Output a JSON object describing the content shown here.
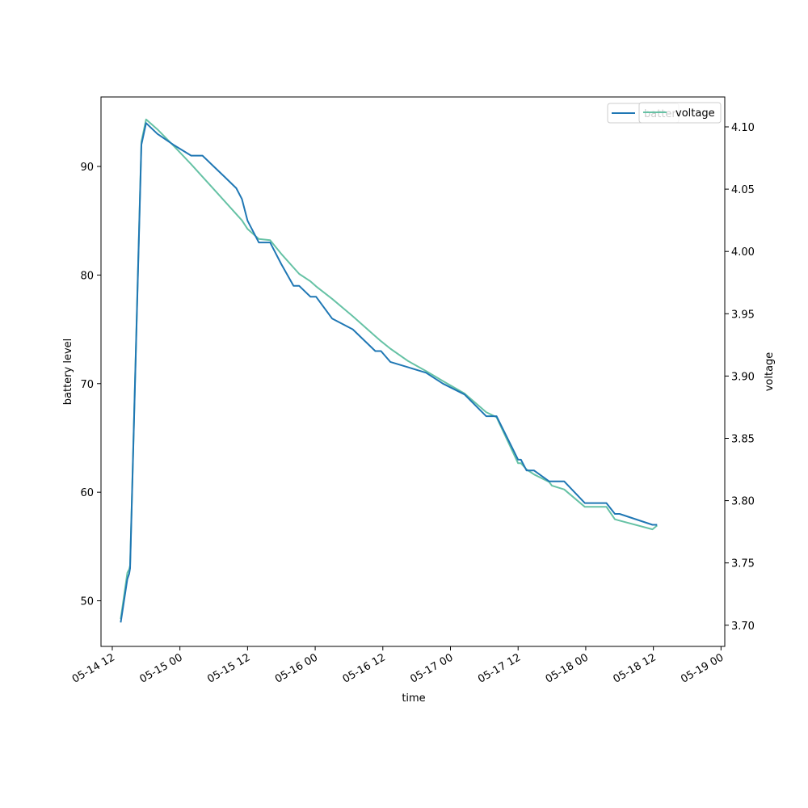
{
  "chart_data": {
    "type": "line",
    "xlabel": "time",
    "ylabel_left": "battery level",
    "ylabel_right": "voltage",
    "xlim": [
      "05-14 10:00",
      "05-19 00:40"
    ],
    "ylim_left": [
      45.8,
      96.4
    ],
    "ylim_right": [
      3.683,
      4.124
    ],
    "grid": false,
    "legend_placement": "top-right",
    "x_ticks": [
      {
        "value": "05-14 12:00",
        "label": "05-14 12"
      },
      {
        "value": "05-15 00:00",
        "label": "05-15 00"
      },
      {
        "value": "05-15 12:00",
        "label": "05-15 12"
      },
      {
        "value": "05-16 00:00",
        "label": "05-16 00"
      },
      {
        "value": "05-16 12:00",
        "label": "05-16 12"
      },
      {
        "value": "05-17 00:00",
        "label": "05-17 00"
      },
      {
        "value": "05-17 12:00",
        "label": "05-17 12"
      },
      {
        "value": "05-18 00:00",
        "label": "05-18 00"
      },
      {
        "value": "05-18 12:00",
        "label": "05-18 12"
      },
      {
        "value": "05-19 00:00",
        "label": "05-19 00"
      }
    ],
    "y_ticks_left": [
      {
        "value": 50,
        "label": "50"
      },
      {
        "value": 60,
        "label": "60"
      },
      {
        "value": 70,
        "label": "70"
      },
      {
        "value": 80,
        "label": "80"
      },
      {
        "value": 90,
        "label": "90"
      }
    ],
    "y_ticks_right": [
      {
        "value": 3.7,
        "label": "3.70"
      },
      {
        "value": 3.75,
        "label": "3.75"
      },
      {
        "value": 3.8,
        "label": "3.80"
      },
      {
        "value": 3.85,
        "label": "3.85"
      },
      {
        "value": 3.9,
        "label": "3.90"
      },
      {
        "value": 3.95,
        "label": "3.95"
      },
      {
        "value": 4.0,
        "label": "4.00"
      },
      {
        "value": 4.05,
        "label": "4.05"
      },
      {
        "value": 4.1,
        "label": "4.10"
      }
    ],
    "series": [
      {
        "name": "battery",
        "axis": "left",
        "color": "#1f77b4",
        "legend_visible_text": "batter",
        "points": [
          [
            "05-14 13:30",
            48
          ],
          [
            "05-14 14:40",
            52
          ],
          [
            "05-14 15:00",
            52.5
          ],
          [
            "05-14 15:10",
            53
          ],
          [
            "05-14 17:10",
            92
          ],
          [
            "05-14 18:00",
            94
          ],
          [
            "05-14 20:00",
            93
          ],
          [
            "05-14 22:50",
            92
          ],
          [
            "05-15 02:00",
            91
          ],
          [
            "05-15 04:00",
            91
          ],
          [
            "05-15 06:00",
            90
          ],
          [
            "05-15 08:00",
            89
          ],
          [
            "05-15 10:00",
            88
          ],
          [
            "05-15 11:00",
            87
          ],
          [
            "05-15 12:00",
            85
          ],
          [
            "05-15 14:00",
            83
          ],
          [
            "05-15 16:00",
            83
          ],
          [
            "05-15 18:00",
            81
          ],
          [
            "05-15 20:10",
            79
          ],
          [
            "05-15 21:10",
            79
          ],
          [
            "05-15 23:10",
            78
          ],
          [
            "05-16 00:10",
            78
          ],
          [
            "05-16 03:00",
            76
          ],
          [
            "05-16 06:40",
            75
          ],
          [
            "05-16 10:40",
            73
          ],
          [
            "05-16 11:40",
            73
          ],
          [
            "05-16 13:20",
            72
          ],
          [
            "05-16 16:30",
            71.5
          ],
          [
            "05-16 19:40",
            71
          ],
          [
            "05-16 22:40",
            70
          ],
          [
            "05-17 02:30",
            69
          ],
          [
            "05-17 06:20",
            67
          ],
          [
            "05-17 08:10",
            67
          ],
          [
            "05-17 12:00",
            63
          ],
          [
            "05-17 12:30",
            63
          ],
          [
            "05-17 13:30",
            62
          ],
          [
            "05-17 14:50",
            62
          ],
          [
            "05-17 17:30",
            61
          ],
          [
            "05-17 20:10",
            61
          ],
          [
            "05-17 23:50",
            59
          ],
          [
            "05-18 03:40",
            59
          ],
          [
            "05-18 05:10",
            58
          ],
          [
            "05-18 06:00",
            58
          ],
          [
            "05-18 11:50",
            57
          ],
          [
            "05-18 12:40",
            57
          ]
        ]
      },
      {
        "name": "voltage",
        "axis": "right",
        "color": "#66c2a5",
        "points": [
          [
            "05-14 13:30",
            3.705
          ],
          [
            "05-14 14:40",
            3.742
          ],
          [
            "05-14 15:00",
            3.745
          ],
          [
            "05-14 15:10",
            3.748
          ],
          [
            "05-14 17:10",
            4.088
          ],
          [
            "05-14 18:00",
            4.106
          ],
          [
            "05-14 20:00",
            4.098
          ],
          [
            "05-14 22:50",
            4.085
          ],
          [
            "05-15 02:00",
            4.07
          ],
          [
            "05-15 06:00",
            4.05
          ],
          [
            "05-15 10:00",
            4.03
          ],
          [
            "05-15 11:00",
            4.025
          ],
          [
            "05-15 12:00",
            4.018
          ],
          [
            "05-15 14:00",
            4.01
          ],
          [
            "05-15 16:00",
            4.009
          ],
          [
            "05-15 18:00",
            3.998
          ],
          [
            "05-15 21:10",
            3.982
          ],
          [
            "05-15 23:10",
            3.976
          ],
          [
            "05-16 00:10",
            3.972
          ],
          [
            "05-16 03:00",
            3.962
          ],
          [
            "05-16 06:40",
            3.948
          ],
          [
            "05-16 10:40",
            3.932
          ],
          [
            "05-16 11:40",
            3.928
          ],
          [
            "05-16 13:20",
            3.922
          ],
          [
            "05-16 16:30",
            3.912
          ],
          [
            "05-16 19:40",
            3.904
          ],
          [
            "05-16 22:40",
            3.896
          ],
          [
            "05-17 02:30",
            3.886
          ],
          [
            "05-17 06:20",
            3.871
          ],
          [
            "05-17 08:10",
            3.867
          ],
          [
            "05-17 12:00",
            3.83
          ],
          [
            "05-17 12:30",
            3.83
          ],
          [
            "05-17 13:30",
            3.825
          ],
          [
            "05-17 14:50",
            3.821
          ],
          [
            "05-17 17:30",
            3.815
          ],
          [
            "05-17 18:00",
            3.812
          ],
          [
            "05-17 20:10",
            3.809
          ],
          [
            "05-17 23:50",
            3.795
          ],
          [
            "05-18 03:40",
            3.795
          ],
          [
            "05-18 05:10",
            3.785
          ],
          [
            "05-18 06:00",
            3.784
          ],
          [
            "05-18 11:50",
            3.777
          ],
          [
            "05-18 12:40",
            3.78
          ]
        ]
      }
    ]
  }
}
